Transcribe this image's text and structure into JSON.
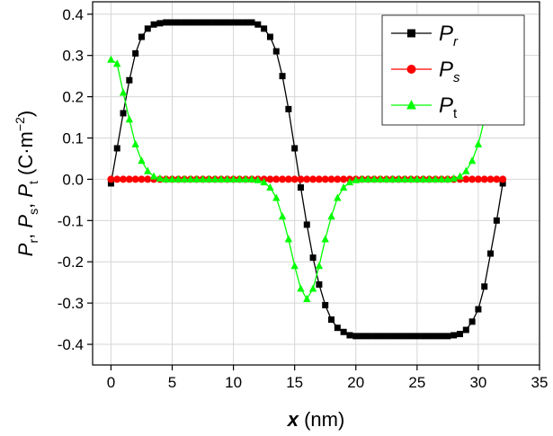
{
  "chart_data": {
    "type": "line",
    "xlabel": {
      "var": "x",
      "rest": " (nm)"
    },
    "ylabel": {
      "p1": "P",
      "s1": "r",
      "c1": ", ",
      "p2": "P",
      "s2": "s",
      "c2": ", ",
      "p3": "P",
      "s3": "t",
      "unit": " (C·m",
      "exp": "−2",
      "close": ")"
    },
    "xlim": [
      -1.5,
      35
    ],
    "ylim": [
      -0.45,
      0.43
    ],
    "xticks": [
      0,
      5,
      10,
      15,
      20,
      25,
      30,
      35
    ],
    "xtick_labels": [
      "0",
      "5",
      "10",
      "15",
      "20",
      "25",
      "30",
      "35"
    ],
    "yticks": [
      -0.4,
      -0.3,
      -0.2,
      -0.1,
      0.0,
      0.1,
      0.2,
      0.3,
      0.4
    ],
    "ytick_labels": [
      "-0.4",
      "-0.3",
      "-0.2",
      "-0.1",
      "0.0",
      "0.1",
      "0.2",
      "0.3",
      "0.4"
    ],
    "grid": true,
    "legend_position": "top-right",
    "series": [
      {
        "name": "P",
        "sub": "r",
        "color": "#000000",
        "marker": "square",
        "x": [
          0.0,
          0.5,
          1.0,
          1.5,
          2.0,
          2.5,
          3.0,
          3.5,
          4.0,
          4.5,
          5.0,
          5.5,
          6.0,
          6.5,
          7.0,
          7.5,
          8.0,
          8.5,
          9.0,
          9.5,
          10.0,
          10.5,
          11.0,
          11.5,
          12.0,
          12.5,
          13.0,
          13.5,
          14.0,
          14.5,
          15.0,
          15.5,
          16.0,
          16.5,
          17.0,
          17.5,
          18.0,
          18.5,
          19.0,
          19.5,
          20.0,
          20.5,
          21.0,
          21.5,
          22.0,
          22.5,
          23.0,
          23.5,
          24.0,
          24.5,
          25.0,
          25.5,
          26.0,
          26.5,
          27.0,
          27.5,
          28.0,
          28.5,
          29.0,
          29.5,
          30.0,
          30.5,
          31.0,
          31.5,
          32.0
        ],
        "y": [
          -0.01,
          0.075,
          0.16,
          0.24,
          0.305,
          0.345,
          0.365,
          0.375,
          0.378,
          0.38,
          0.38,
          0.38,
          0.38,
          0.38,
          0.38,
          0.38,
          0.38,
          0.38,
          0.38,
          0.38,
          0.38,
          0.38,
          0.38,
          0.38,
          0.375,
          0.365,
          0.345,
          0.31,
          0.25,
          0.17,
          0.075,
          -0.02,
          -0.11,
          -0.19,
          -0.255,
          -0.305,
          -0.34,
          -0.36,
          -0.37,
          -0.378,
          -0.38,
          -0.38,
          -0.38,
          -0.38,
          -0.38,
          -0.38,
          -0.38,
          -0.38,
          -0.38,
          -0.38,
          -0.38,
          -0.38,
          -0.38,
          -0.38,
          -0.38,
          -0.38,
          -0.378,
          -0.375,
          -0.365,
          -0.345,
          -0.315,
          -0.26,
          -0.18,
          -0.1,
          -0.01
        ]
      },
      {
        "name": "P",
        "sub": "s",
        "color": "#ff0000",
        "marker": "circle",
        "x": [
          0.0,
          0.5,
          1.0,
          1.5,
          2.0,
          2.5,
          3.0,
          3.5,
          4.0,
          4.5,
          5.0,
          5.5,
          6.0,
          6.5,
          7.0,
          7.5,
          8.0,
          8.5,
          9.0,
          9.5,
          10.0,
          10.5,
          11.0,
          11.5,
          12.0,
          12.5,
          13.0,
          13.5,
          14.0,
          14.5,
          15.0,
          15.5,
          16.0,
          16.5,
          17.0,
          17.5,
          18.0,
          18.5,
          19.0,
          19.5,
          20.0,
          20.5,
          21.0,
          21.5,
          22.0,
          22.5,
          23.0,
          23.5,
          24.0,
          24.5,
          25.0,
          25.5,
          26.0,
          26.5,
          27.0,
          27.5,
          28.0,
          28.5,
          29.0,
          29.5,
          30.0,
          30.5,
          31.0,
          31.5,
          32.0
        ],
        "y": [
          0.0,
          0.0,
          0.0,
          0.0,
          0.0,
          0.0,
          0.0,
          0.0,
          0.0,
          0.0,
          0.0,
          0.0,
          0.0,
          0.0,
          0.0,
          0.0,
          0.0,
          0.0,
          0.0,
          0.0,
          0.0,
          0.0,
          0.0,
          0.0,
          0.0,
          0.0,
          0.0,
          0.0,
          0.0,
          0.0,
          0.0,
          0.0,
          0.0,
          0.0,
          0.0,
          0.0,
          0.0,
          0.0,
          0.0,
          0.0,
          0.0,
          0.0,
          0.0,
          0.0,
          0.0,
          0.0,
          0.0,
          0.0,
          0.0,
          0.0,
          0.0,
          0.0,
          0.0,
          0.0,
          0.0,
          0.0,
          0.0,
          0.0,
          0.0,
          0.0,
          0.0,
          0.0,
          0.0,
          0.0,
          0.0
        ]
      },
      {
        "name": "P",
        "sub": "t",
        "color": "#00ff00",
        "marker": "triangle",
        "x": [
          0.0,
          0.5,
          1.0,
          1.5,
          2.0,
          2.5,
          3.0,
          3.5,
          4.0,
          4.5,
          5.0,
          5.5,
          6.0,
          6.5,
          7.0,
          7.5,
          8.0,
          8.5,
          9.0,
          9.5,
          10.0,
          10.5,
          11.0,
          11.5,
          12.0,
          12.5,
          13.0,
          13.5,
          14.0,
          14.5,
          15.0,
          15.5,
          16.0,
          16.5,
          17.0,
          17.5,
          18.0,
          18.5,
          19.0,
          19.5,
          20.0,
          20.5,
          21.0,
          21.5,
          22.0,
          22.5,
          23.0,
          23.5,
          24.0,
          24.5,
          25.0,
          25.5,
          26.0,
          26.5,
          27.0,
          27.5,
          28.0,
          28.5,
          29.0,
          29.5,
          30.0,
          30.5,
          31.0,
          31.5,
          32.0
        ],
        "y": [
          0.29,
          0.28,
          0.21,
          0.145,
          0.085,
          0.045,
          0.02,
          0.007,
          0.002,
          0.0,
          0.0,
          0.0,
          0.0,
          0.0,
          0.0,
          0.0,
          0.0,
          0.0,
          0.0,
          0.0,
          0.0,
          0.0,
          0.0,
          0.0,
          -0.002,
          -0.007,
          -0.02,
          -0.045,
          -0.09,
          -0.145,
          -0.21,
          -0.265,
          -0.29,
          -0.265,
          -0.21,
          -0.145,
          -0.09,
          -0.045,
          -0.02,
          -0.007,
          -0.002,
          0.0,
          0.0,
          0.0,
          0.0,
          0.0,
          0.0,
          0.0,
          0.0,
          0.0,
          0.0,
          0.0,
          0.0,
          0.0,
          0.0,
          0.0,
          0.002,
          0.007,
          0.02,
          0.045,
          0.085,
          0.145,
          0.21,
          0.26,
          0.29
        ]
      }
    ]
  }
}
